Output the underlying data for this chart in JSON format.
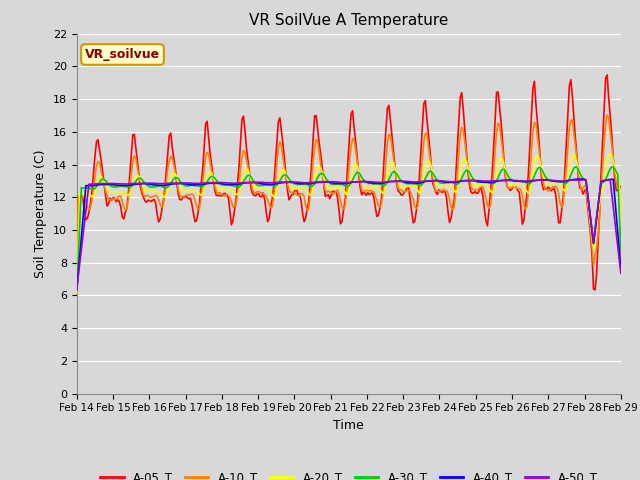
{
  "title": "VR SoilVue A Temperature",
  "xlabel": "Time",
  "ylabel": "Soil Temperature (C)",
  "ylim": [
    0,
    22
  ],
  "yticks": [
    0,
    2,
    4,
    6,
    8,
    10,
    12,
    14,
    16,
    18,
    20,
    22
  ],
  "xtick_labels": [
    "Feb 14",
    "Feb 15",
    "Feb 16",
    "Feb 17",
    "Feb 18",
    "Feb 19",
    "Feb 20",
    "Feb 21",
    "Feb 22",
    "Feb 23",
    "Feb 24",
    "Feb 25",
    "Feb 26",
    "Feb 27",
    "Feb 28",
    "Feb 29"
  ],
  "series_names": [
    "A-05_T",
    "A-10_T",
    "A-20_T",
    "A-30_T",
    "A-40_T",
    "A-50_T"
  ],
  "series_colors": [
    "#ff0000",
    "#ff8000",
    "#ffff00",
    "#00cc00",
    "#0000ff",
    "#9900cc"
  ],
  "series_linewidths": [
    1.2,
    1.2,
    1.2,
    1.2,
    1.2,
    1.2
  ],
  "bg_color": "#d8d8d8",
  "plot_bg_color": "#d8d8d8",
  "grid_color": "#ffffff",
  "annotation_text": "VR_soilvue",
  "annotation_bg": "#ffffcc",
  "annotation_border": "#cc9900",
  "n_days": 15,
  "hours_per_day": 24
}
